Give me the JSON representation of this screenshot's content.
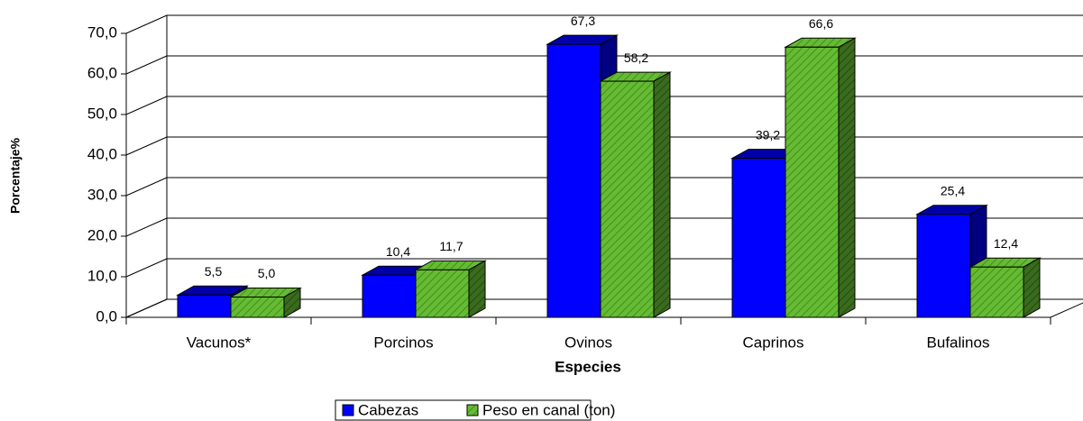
{
  "chart_data": {
    "type": "bar3d",
    "x_label": "Especies",
    "y_label": "Porcentaje%",
    "categories": [
      "Vacunos*",
      "Porcinos",
      "Ovinos",
      "Caprinos",
      "Bufalinos"
    ],
    "series": [
      {
        "name": "Cabezas",
        "color": "#0000ff",
        "values": [
          5.5,
          10.4,
          67.3,
          39.2,
          25.4
        ],
        "value_labels": [
          "5,5",
          "10,4",
          "67,3",
          "39,2",
          "25,4"
        ]
      },
      {
        "name": "Peso en canal (ton)",
        "color": "#66bb33",
        "values": [
          5.0,
          11.7,
          58.2,
          66.6,
          12.4
        ],
        "value_labels": [
          "5,0",
          "11,7",
          "58,2",
          "66,6",
          "12,4"
        ]
      }
    ],
    "ylim": [
      0,
      70
    ],
    "yticks": [
      {
        "value": 0,
        "label": "0,0"
      },
      {
        "value": 10,
        "label": "10,0"
      },
      {
        "value": 20,
        "label": "20,0"
      },
      {
        "value": 30,
        "label": "30,0"
      },
      {
        "value": 40,
        "label": "40,0"
      },
      {
        "value": 50,
        "label": "50,0"
      },
      {
        "value": 60,
        "label": "60,0"
      },
      {
        "value": 70,
        "label": "70,0"
      }
    ],
    "grid": true,
    "legend": "bottom"
  }
}
